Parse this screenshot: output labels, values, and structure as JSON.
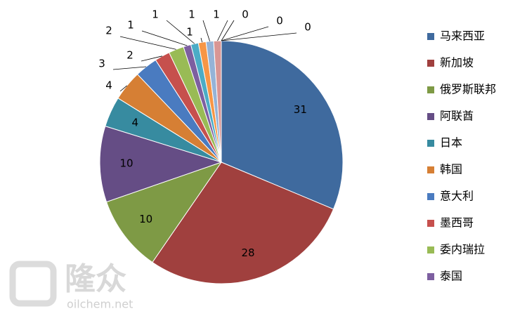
{
  "chart_data": {
    "type": "pie",
    "categories": [
      "马来西亚",
      "新加坡",
      "俄罗斯联邦",
      "阿联酋",
      "日本",
      "韩国",
      "意大利",
      "墨西哥",
      "委内瑞拉",
      "泰国",
      null,
      null,
      null,
      null,
      null,
      null,
      null
    ],
    "values": [
      31,
      28,
      10,
      10,
      4,
      4,
      3,
      2,
      2,
      1,
      1,
      1,
      1,
      1,
      0,
      0,
      0
    ],
    "colors": [
      "#3f6a9e",
      "#a0403e",
      "#7e9a45",
      "#654d85",
      "#378ba0",
      "#d67f34",
      "#4a7bc0",
      "#c6504d",
      "#99bb55",
      "#7d5fa0",
      "#4bacc6",
      "#f79646",
      "#95b3d7",
      "#d99694",
      "#c3d69b",
      "#b3a2c7",
      "#93cddd"
    ],
    "legend": "right",
    "annotations": [
      "隆众",
      "oilchem.net"
    ]
  }
}
